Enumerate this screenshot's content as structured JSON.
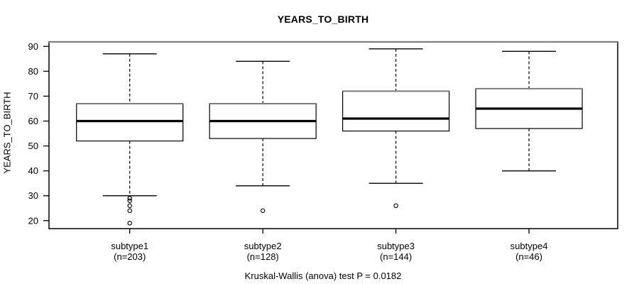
{
  "title": "YEARS_TO_BIRTH",
  "colors": {
    "axis": "#000000",
    "text": "#000000",
    "frame_top": "#808080",
    "box_top_edge": "#7d7d7d",
    "box_fill": "#ffffff",
    "background": "#ffffff"
  },
  "chart_data": {
    "type": "boxplot",
    "title": "YEARS_TO_BIRTH",
    "ylabel": "YEARS_TO_BIRTH",
    "xlabel": "",
    "caption": "Kruskal-Wallis (anova) test P = 0.0182",
    "ylim": [
      16.8,
      91.8
    ],
    "yticks": [
      20,
      30,
      40,
      50,
      60,
      70,
      80,
      90
    ],
    "grid": false,
    "legend": "none",
    "groups": [
      {
        "label": "subtype1",
        "sublabel": "(n=203)",
        "n": 203,
        "whisker_low": 30,
        "q1": 52,
        "median": 60,
        "q3": 67,
        "whisker_high": 87,
        "outliers": [
          29,
          28,
          26,
          24,
          19
        ]
      },
      {
        "label": "subtype2",
        "sublabel": "(n=128)",
        "n": 128,
        "whisker_low": 34,
        "q1": 53,
        "median": 60,
        "q3": 67,
        "whisker_high": 84,
        "outliers": [
          24
        ]
      },
      {
        "label": "subtype3",
        "sublabel": "(n=144)",
        "n": 144,
        "whisker_low": 35,
        "q1": 56,
        "median": 61,
        "q3": 72,
        "whisker_high": 89,
        "outliers": [
          26
        ]
      },
      {
        "label": "subtype4",
        "sublabel": "(n=46)",
        "n": 46,
        "whisker_low": 40,
        "q1": 57,
        "median": 65,
        "q3": 73,
        "whisker_high": 88,
        "outliers": []
      }
    ]
  }
}
